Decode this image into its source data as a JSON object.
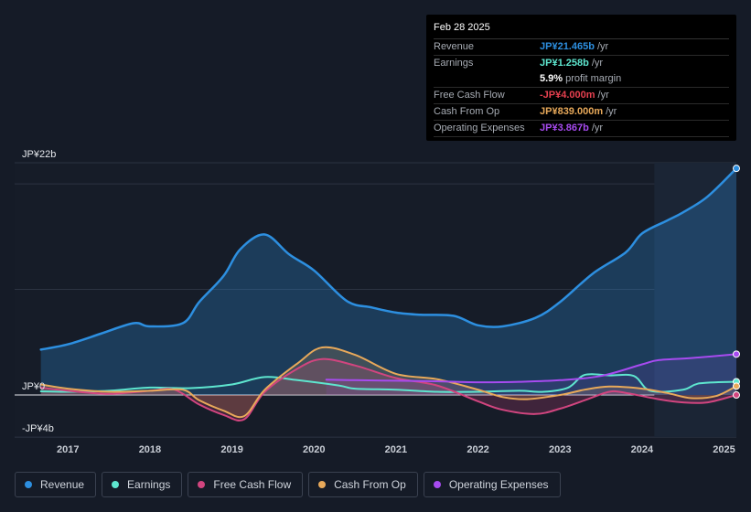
{
  "tooltip": {
    "date": "Feb 28 2025",
    "rows": [
      {
        "label": "Revenue",
        "value": "JP¥21.465b",
        "unit": "/yr",
        "color": "#2d8fe0"
      },
      {
        "label": "Earnings",
        "value": "JP¥1.258b",
        "unit": "/yr",
        "color": "#5ee6cf"
      },
      {
        "label": "",
        "value": "5.9%",
        "unit": "profit margin",
        "color": "#ffffff"
      },
      {
        "label": "Free Cash Flow",
        "value": "-JP¥4.000m",
        "unit": "/yr",
        "color": "#e5404f"
      },
      {
        "label": "Cash From Op",
        "value": "JP¥839.000m",
        "unit": "/yr",
        "color": "#e8a95a"
      },
      {
        "label": "Operating Expenses",
        "value": "JP¥3.867b",
        "unit": "/yr",
        "color": "#a74bf0"
      }
    ]
  },
  "legend": [
    {
      "label": "Revenue",
      "color": "#2d8fe0"
    },
    {
      "label": "Earnings",
      "color": "#5ee6cf"
    },
    {
      "label": "Free Cash Flow",
      "color": "#d1457f"
    },
    {
      "label": "Cash From Op",
      "color": "#e8a95a"
    },
    {
      "label": "Operating Expenses",
      "color": "#a74bf0"
    }
  ],
  "chart_data": {
    "type": "line",
    "title": "",
    "xlabel": "",
    "ylabel": "",
    "ylim": [
      -4,
      22
    ],
    "y_tick_labels": [
      {
        "value": 22,
        "label": "JP¥22b"
      },
      {
        "value": 0,
        "label": "JP¥0"
      },
      {
        "value": -4,
        "label": "-JP¥4b"
      }
    ],
    "x_tick_labels": [
      {
        "value": 2017,
        "label": "2017"
      },
      {
        "value": 2018,
        "label": "2018"
      },
      {
        "value": 2019,
        "label": "2019"
      },
      {
        "value": 2020,
        "label": "2020"
      },
      {
        "value": 2021,
        "label": "2021"
      },
      {
        "value": 2022,
        "label": "2022"
      },
      {
        "value": 2023,
        "label": "2023"
      },
      {
        "value": 2024,
        "label": "2024"
      },
      {
        "value": 2025,
        "label": "2025"
      }
    ],
    "xlim": [
      2016.35,
      2025.15
    ],
    "highlight_start": 2024.15,
    "series": [
      {
        "name": "Revenue",
        "color": "#2d8fe0",
        "fill": true,
        "x": [
          2016.67,
          2017.0,
          2017.4,
          2017.8,
          2018.0,
          2018.4,
          2018.6,
          2018.9,
          2019.1,
          2019.4,
          2019.7,
          2020.0,
          2020.4,
          2020.7,
          2021.0,
          2021.3,
          2021.7,
          2022.0,
          2022.3,
          2022.7,
          2023.0,
          2023.4,
          2023.8,
          2024.0,
          2024.3,
          2024.5,
          2024.8,
          2025.15
        ],
        "values": [
          4.3,
          4.8,
          5.8,
          6.8,
          6.5,
          6.8,
          8.8,
          11.3,
          13.8,
          15.2,
          13.3,
          11.8,
          8.9,
          8.3,
          7.8,
          7.6,
          7.5,
          6.6,
          6.5,
          7.3,
          8.8,
          11.5,
          13.5,
          15.3,
          16.5,
          17.3,
          18.8,
          21.465
        ]
      },
      {
        "name": "Earnings",
        "color": "#5ee6cf",
        "fill": false,
        "x": [
          2016.67,
          2017.0,
          2017.5,
          2018.0,
          2018.5,
          2019.0,
          2019.4,
          2019.8,
          2020.3,
          2020.5,
          2021.0,
          2021.5,
          2022.0,
          2022.5,
          2022.8,
          2023.1,
          2023.3,
          2023.6,
          2023.9,
          2024.1,
          2024.5,
          2024.7,
          2025.15
        ],
        "values": [
          0.35,
          0.3,
          0.4,
          0.7,
          0.65,
          1.0,
          1.7,
          1.4,
          0.9,
          0.6,
          0.5,
          0.3,
          0.3,
          0.4,
          0.3,
          0.7,
          1.9,
          1.85,
          1.8,
          0.4,
          0.5,
          1.1,
          1.258
        ]
      },
      {
        "name": "Free Cash Flow",
        "color": "#d1457f",
        "fill": true,
        "x": [
          2016.67,
          2017.0,
          2017.5,
          2018.0,
          2018.3,
          2018.6,
          2018.9,
          2019.15,
          2019.4,
          2019.8,
          2020.1,
          2020.5,
          2021.0,
          2021.5,
          2022.0,
          2022.3,
          2022.7,
          2023.0,
          2023.3,
          2023.6,
          2023.8,
          2024.2,
          2024.5,
          2024.8,
          2025.15
        ],
        "values": [
          0.7,
          0.4,
          0.1,
          0.4,
          0.5,
          -0.9,
          -1.9,
          -2.3,
          0.3,
          2.5,
          3.4,
          2.8,
          1.6,
          0.9,
          -0.6,
          -1.4,
          -1.8,
          -1.3,
          -0.5,
          0.3,
          0.2,
          -0.4,
          -0.7,
          -0.7,
          -0.004
        ]
      },
      {
        "name": "Cash From Op",
        "color": "#e8a95a",
        "fill": true,
        "x": [
          2016.67,
          2017.0,
          2017.5,
          2018.0,
          2018.4,
          2018.6,
          2018.9,
          2019.15,
          2019.4,
          2019.8,
          2020.1,
          2020.5,
          2021.0,
          2021.5,
          2022.0,
          2022.3,
          2022.6,
          2023.0,
          2023.3,
          2023.6,
          2024.0,
          2024.3,
          2024.6,
          2024.9,
          2025.15
        ],
        "values": [
          1.0,
          0.6,
          0.3,
          0.4,
          0.5,
          -0.5,
          -1.5,
          -2.0,
          0.5,
          3.0,
          4.5,
          3.8,
          2.0,
          1.5,
          0.5,
          -0.2,
          -0.4,
          0.0,
          0.5,
          0.8,
          0.6,
          0.2,
          -0.3,
          -0.1,
          0.839
        ]
      },
      {
        "name": "Operating Expenses",
        "color": "#a74bf0",
        "fill": true,
        "x": [
          2020.15,
          2020.5,
          2021.0,
          2021.5,
          2022.0,
          2022.5,
          2023.0,
          2023.5,
          2024.0,
          2024.2,
          2024.6,
          2025.15
        ],
        "values": [
          1.45,
          1.4,
          1.35,
          1.3,
          1.2,
          1.25,
          1.4,
          1.8,
          2.9,
          3.3,
          3.5,
          3.867
        ]
      }
    ]
  }
}
